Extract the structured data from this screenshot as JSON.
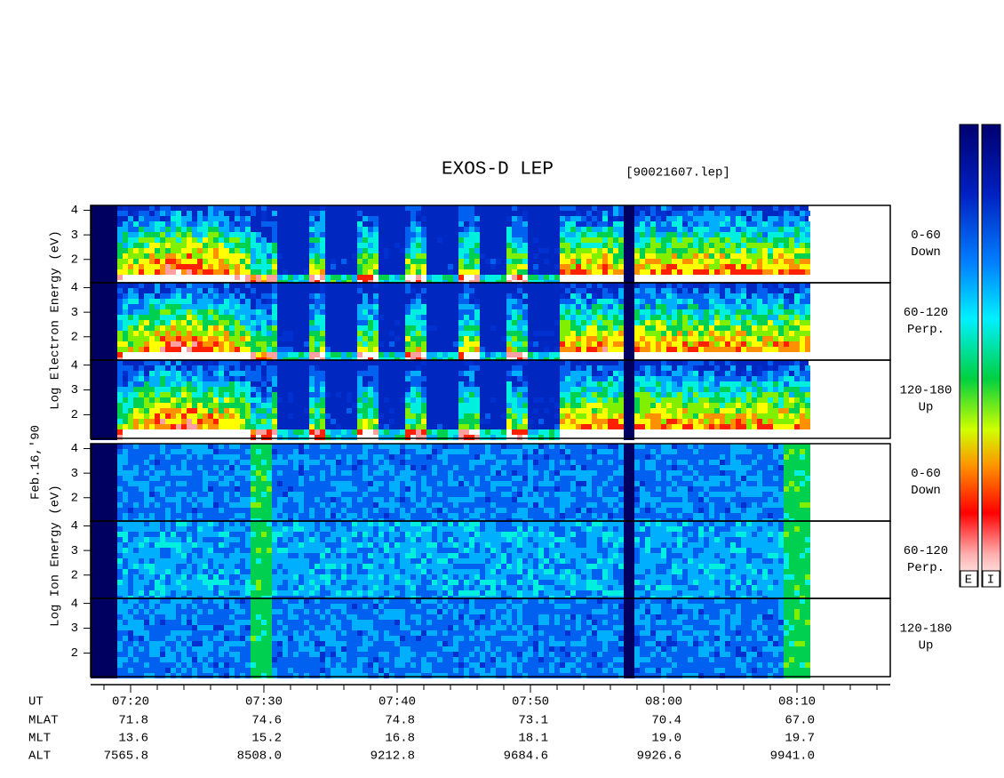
{
  "title": "EXOS-D LEP",
  "file": "[90021607.lep]",
  "date_label": "Feb.16,'90",
  "electron": {
    "axis_label": "Log  Electron  Energy (eV)",
    "panels": [
      [
        "0-60",
        "Down"
      ],
      [
        "60-120",
        "Perp."
      ],
      [
        "120-180",
        "Up"
      ]
    ]
  },
  "ion": {
    "axis_label": "Log  Ion  Energy (eV)",
    "panels": [
      [
        "0-60",
        "Down"
      ],
      [
        "60-120",
        "Perp."
      ],
      [
        "120-180",
        "Up"
      ]
    ]
  },
  "ylim": [
    1.05,
    4.2
  ],
  "yticks": [
    2,
    3,
    4
  ],
  "xlim": [
    437,
    497
  ],
  "xticks": [
    {
      "value": 440,
      "label": "07:20"
    },
    {
      "value": 450,
      "label": "07:30"
    },
    {
      "value": 460,
      "label": "07:40"
    },
    {
      "value": 470,
      "label": "07:50"
    },
    {
      "value": 480,
      "label": "08:00"
    },
    {
      "value": 490,
      "label": "08:10"
    }
  ],
  "x_minor_ticks": [
    438,
    442,
    444,
    446,
    448,
    452,
    454,
    456,
    458,
    462,
    464,
    466,
    468,
    472,
    474,
    476,
    478,
    482,
    484,
    486,
    488,
    492,
    494,
    496
  ],
  "time_row_label": "UT",
  "ephemeris": [
    {
      "name": "MLAT",
      "values": [
        "71.8",
        "74.6",
        "74.8",
        "73.1",
        "70.4",
        "67.0"
      ]
    },
    {
      "name": "MLT",
      "values": [
        "13.6",
        "15.2",
        "16.8",
        "18.1",
        "19.0",
        "19.7"
      ]
    },
    {
      "name": "ALT",
      "values": [
        "7565.8",
        "8508.0",
        "9212.8",
        "9684.6",
        "9926.6",
        "9941.0"
      ]
    }
  ],
  "colorbars": [
    "E",
    "I"
  ]
}
